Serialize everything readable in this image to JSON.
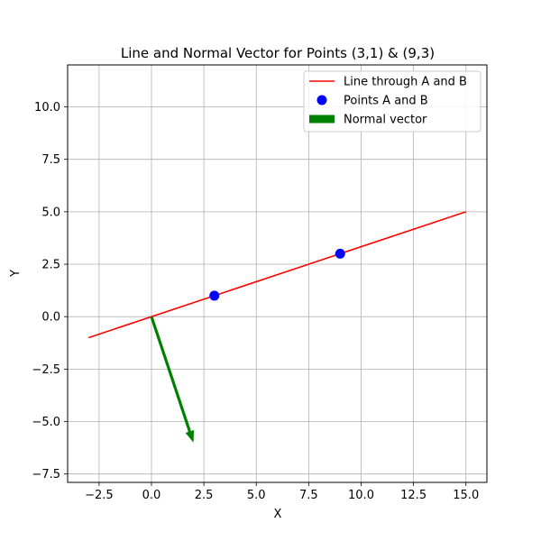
{
  "chart_data": {
    "type": "line",
    "title": "Line and Normal Vector for Points (3,1) & (9,3)",
    "xlabel": "X",
    "ylabel": "Y",
    "xlim": [
      -4,
      16
    ],
    "ylim": [
      -7.9,
      12
    ],
    "xticks": [
      -2.5,
      0.0,
      2.5,
      5.0,
      7.5,
      10.0,
      12.5,
      15.0
    ],
    "xtick_labels": [
      "−2.5",
      "0.0",
      "2.5",
      "5.0",
      "7.5",
      "10.0",
      "12.5",
      "15.0"
    ],
    "yticks": [
      -7.5,
      -5.0,
      -2.5,
      0.0,
      2.5,
      5.0,
      7.5,
      10.0
    ],
    "ytick_labels": [
      "−7.5",
      "−5.0",
      "−2.5",
      "0.0",
      "2.5",
      "5.0",
      "7.5",
      "10.0"
    ],
    "grid": true,
    "legend_position": "top-right",
    "series": [
      {
        "name": "Line through A and B",
        "kind": "line",
        "color": "#ff0000",
        "x": [
          -3,
          15
        ],
        "y": [
          -1,
          5
        ]
      },
      {
        "name": "Points A and B",
        "kind": "scatter",
        "color": "#0000ff",
        "x": [
          3,
          9
        ],
        "y": [
          1,
          3
        ]
      },
      {
        "name": "Normal vector",
        "kind": "arrow",
        "color": "#008000",
        "x": [
          0,
          2
        ],
        "y": [
          0,
          -6
        ]
      }
    ]
  }
}
